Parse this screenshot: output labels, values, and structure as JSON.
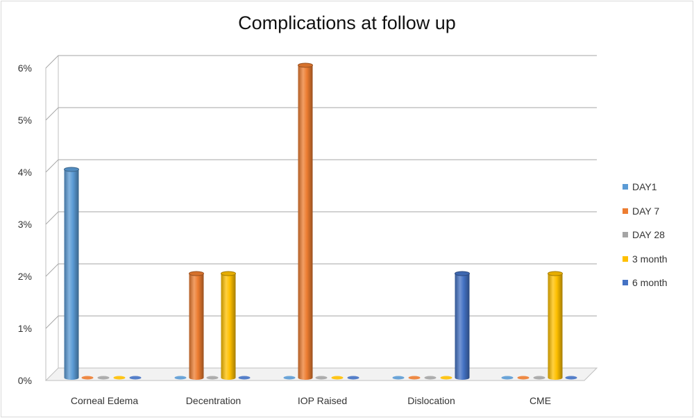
{
  "chart_data": {
    "type": "bar",
    "title": "Complications at follow up",
    "categories": [
      "Corneal Edema",
      "Decentration",
      "IOP Raised",
      "Dislocation",
      "CME"
    ],
    "series": [
      {
        "name": "DAY1",
        "color": "#5b9bd5",
        "values": [
          4,
          0,
          0,
          0,
          0
        ]
      },
      {
        "name": "DAY 7",
        "color": "#ed7d31",
        "values": [
          0,
          2,
          6,
          0,
          0
        ]
      },
      {
        "name": "DAY 28",
        "color": "#a5a5a5",
        "values": [
          0,
          0,
          0,
          0,
          0
        ]
      },
      {
        "name": "3 month",
        "color": "#ffc000",
        "values": [
          0,
          2,
          0,
          0,
          2
        ]
      },
      {
        "name": "6 month",
        "color": "#4472c4",
        "values": [
          0,
          0,
          0,
          2,
          0
        ]
      }
    ],
    "ylim": [
      0,
      6
    ],
    "yticks": [
      "0%",
      "1%",
      "2%",
      "3%",
      "4%",
      "5%",
      "6%"
    ],
    "grid": true,
    "legend_position": "right",
    "style": "3d-cylinder"
  }
}
